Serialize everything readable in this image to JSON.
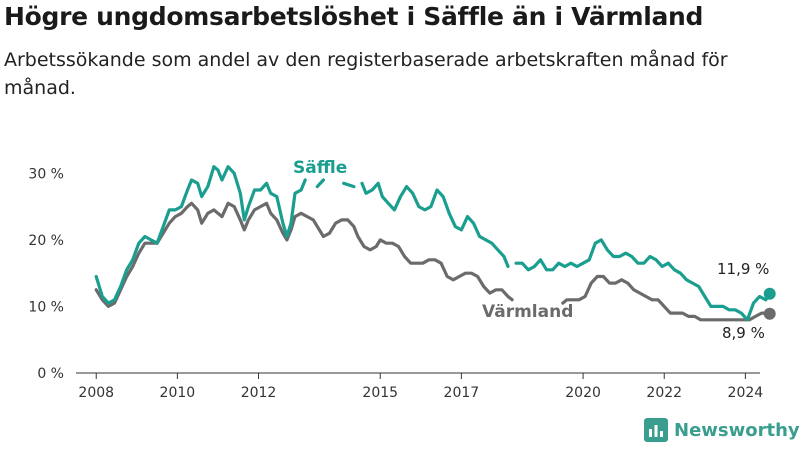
{
  "header": {
    "title": "Högre ungdomsarbetslöshet i Säffle än i Värmland",
    "subtitle": "Arbetssökande som andel av den registerbaserade arbetskraften månad för månad."
  },
  "brand": {
    "name": "Newsworthy",
    "logo_icon": "bar-chart-logo-icon",
    "color": "#3a9e8e"
  },
  "chart_data": {
    "type": "line",
    "title": "Högre ungdomsarbetslöshet i Säffle än i Värmland",
    "subtitle": "Arbetssökande som andel av den registerbaserade arbetskraften månad för månad.",
    "xlabel": "",
    "ylabel": "",
    "x_ticks": [
      "2008",
      "2010",
      "2012",
      "2015",
      "2017",
      "2020",
      "2022",
      "2024"
    ],
    "x_tick_values": [
      2008,
      2010,
      2012,
      2015,
      2017,
      2020,
      2022,
      2024
    ],
    "y_ticks": [
      "0 %",
      "10 %",
      "20 %",
      "30 %"
    ],
    "y_tick_values": [
      0,
      10,
      20,
      30
    ],
    "xlim": [
      2007.6,
      2025.1
    ],
    "ylim": [
      0,
      32
    ],
    "grid": false,
    "legend": "inline labels",
    "series": [
      {
        "name": "Säffle",
        "color": "#1a9e8f",
        "end_label": "11,9 %",
        "segments": [
          [
            [
              2008.0,
              14.5
            ],
            [
              2008.15,
              11.5
            ],
            [
              2008.3,
              10.5
            ],
            [
              2008.45,
              11.0
            ],
            [
              2008.6,
              13.0
            ],
            [
              2008.75,
              15.5
            ],
            [
              2008.9,
              17.0
            ],
            [
              2009.05,
              19.5
            ],
            [
              2009.2,
              20.5
            ],
            [
              2009.35,
              20.0
            ],
            [
              2009.5,
              19.5
            ],
            [
              2009.65,
              22.0
            ],
            [
              2009.8,
              24.5
            ],
            [
              2009.95,
              24.5
            ],
            [
              2010.1,
              25.0
            ],
            [
              2010.25,
              27.5
            ],
            [
              2010.35,
              29.0
            ],
            [
              2010.5,
              28.5
            ],
            [
              2010.6,
              26.5
            ],
            [
              2010.75,
              28.0
            ],
            [
              2010.9,
              31.0
            ],
            [
              2011.0,
              30.5
            ],
            [
              2011.1,
              29.0
            ],
            [
              2011.25,
              31.0
            ],
            [
              2011.4,
              30.0
            ],
            [
              2011.55,
              27.0
            ],
            [
              2011.65,
              23.0
            ],
            [
              2011.75,
              25.0
            ],
            [
              2011.9,
              27.5
            ],
            [
              2012.05,
              27.5
            ],
            [
              2012.2,
              28.5
            ],
            [
              2012.3,
              27.0
            ],
            [
              2012.45,
              26.5
            ],
            [
              2012.6,
              22.5
            ],
            [
              2012.7,
              20.5
            ],
            [
              2012.8,
              22.5
            ],
            [
              2012.9,
              27.0
            ],
            [
              2013.05,
              27.5
            ],
            [
              2013.15,
              29.0
            ]
          ],
          [
            [
              2013.45,
              28.0
            ],
            [
              2013.6,
              29.0
            ]
          ],
          [
            [
              2014.1,
              28.5
            ],
            [
              2014.35,
              28.0
            ]
          ],
          [
            [
              2014.55,
              28.5
            ],
            [
              2014.65,
              27.0
            ],
            [
              2014.8,
              27.5
            ],
            [
              2014.95,
              28.5
            ],
            [
              2015.05,
              26.5
            ],
            [
              2015.2,
              25.5
            ],
            [
              2015.35,
              24.5
            ],
            [
              2015.5,
              26.5
            ],
            [
              2015.65,
              28.0
            ],
            [
              2015.8,
              27.0
            ],
            [
              2015.95,
              25.0
            ],
            [
              2016.1,
              24.5
            ],
            [
              2016.25,
              25.0
            ],
            [
              2016.4,
              27.5
            ],
            [
              2016.55,
              26.5
            ],
            [
              2016.7,
              24.0
            ],
            [
              2016.85,
              22.0
            ],
            [
              2017.0,
              21.5
            ],
            [
              2017.15,
              23.5
            ],
            [
              2017.3,
              22.5
            ],
            [
              2017.45,
              20.5
            ],
            [
              2017.6,
              20.0
            ],
            [
              2017.75,
              19.5
            ],
            [
              2017.9,
              18.5
            ],
            [
              2018.05,
              17.5
            ],
            [
              2018.15,
              16.0
            ]
          ],
          [
            [
              2018.35,
              16.5
            ],
            [
              2018.5,
              16.5
            ],
            [
              2018.65,
              15.5
            ],
            [
              2018.8,
              16.0
            ],
            [
              2018.95,
              17.0
            ],
            [
              2019.1,
              15.5
            ],
            [
              2019.25,
              15.5
            ],
            [
              2019.4,
              16.5
            ],
            [
              2019.55,
              16.0
            ],
            [
              2019.7,
              16.5
            ],
            [
              2019.85,
              16.0
            ],
            [
              2020.0,
              16.5
            ],
            [
              2020.15,
              17.0
            ],
            [
              2020.3,
              19.5
            ],
            [
              2020.45,
              20.0
            ],
            [
              2020.6,
              18.5
            ],
            [
              2020.75,
              17.5
            ],
            [
              2020.9,
              17.5
            ],
            [
              2021.05,
              18.0
            ],
            [
              2021.2,
              17.5
            ],
            [
              2021.35,
              16.5
            ],
            [
              2021.5,
              16.5
            ],
            [
              2021.65,
              17.5
            ],
            [
              2021.8,
              17.0
            ],
            [
              2021.95,
              16.0
            ],
            [
              2022.1,
              16.5
            ],
            [
              2022.25,
              15.5
            ],
            [
              2022.4,
              15.0
            ],
            [
              2022.55,
              14.0
            ],
            [
              2022.7,
              13.5
            ],
            [
              2022.85,
              13.0
            ],
            [
              2023.0,
              11.5
            ],
            [
              2023.15,
              10.0
            ],
            [
              2023.3,
              10.0
            ],
            [
              2023.45,
              10.0
            ],
            [
              2023.6,
              9.5
            ],
            [
              2023.75,
              9.5
            ],
            [
              2023.9,
              9.0
            ],
            [
              2024.05,
              8.0
            ],
            [
              2024.2,
              10.5
            ],
            [
              2024.35,
              11.5
            ],
            [
              2024.5,
              11.0
            ],
            [
              2024.6,
              11.9
            ]
          ]
        ]
      },
      {
        "name": "Värmland",
        "color": "#6b6b6b",
        "end_label": "8,9 %",
        "segments": [
          [
            [
              2008.0,
              12.5
            ],
            [
              2008.15,
              11.0
            ],
            [
              2008.3,
              10.0
            ],
            [
              2008.45,
              10.5
            ],
            [
              2008.6,
              12.5
            ],
            [
              2008.75,
              14.5
            ],
            [
              2008.9,
              16.0
            ],
            [
              2009.05,
              18.0
            ],
            [
              2009.2,
              19.5
            ],
            [
              2009.35,
              19.5
            ],
            [
              2009.5,
              19.5
            ],
            [
              2009.65,
              21.0
            ],
            [
              2009.8,
              22.5
            ],
            [
              2009.95,
              23.5
            ],
            [
              2010.1,
              24.0
            ],
            [
              2010.25,
              25.0
            ],
            [
              2010.35,
              25.5
            ],
            [
              2010.5,
              24.5
            ],
            [
              2010.6,
              22.5
            ],
            [
              2010.75,
              24.0
            ],
            [
              2010.9,
              24.5
            ],
            [
              2011.0,
              24.0
            ],
            [
              2011.1,
              23.5
            ],
            [
              2011.25,
              25.5
            ],
            [
              2011.4,
              25.0
            ],
            [
              2011.55,
              23.0
            ],
            [
              2011.65,
              21.5
            ],
            [
              2011.75,
              23.0
            ],
            [
              2011.9,
              24.5
            ],
            [
              2012.05,
              25.0
            ],
            [
              2012.2,
              25.5
            ],
            [
              2012.3,
              24.0
            ],
            [
              2012.45,
              23.0
            ],
            [
              2012.6,
              21.0
            ],
            [
              2012.7,
              20.0
            ],
            [
              2012.8,
              21.5
            ],
            [
              2012.9,
              23.5
            ],
            [
              2013.05,
              24.0
            ],
            [
              2013.2,
              23.5
            ],
            [
              2013.35,
              23.0
            ],
            [
              2013.5,
              21.5
            ],
            [
              2013.6,
              20.5
            ],
            [
              2013.75,
              21.0
            ],
            [
              2013.9,
              22.5
            ],
            [
              2014.05,
              23.0
            ],
            [
              2014.2,
              23.0
            ],
            [
              2014.35,
              22.0
            ],
            [
              2014.45,
              20.5
            ],
            [
              2014.6,
              19.0
            ],
            [
              2014.75,
              18.5
            ],
            [
              2014.9,
              19.0
            ],
            [
              2015.0,
              20.0
            ],
            [
              2015.15,
              19.5
            ],
            [
              2015.3,
              19.5
            ],
            [
              2015.45,
              19.0
            ],
            [
              2015.6,
              17.5
            ],
            [
              2015.75,
              16.5
            ],
            [
              2015.9,
              16.5
            ],
            [
              2016.05,
              16.5
            ],
            [
              2016.2,
              17.0
            ],
            [
              2016.35,
              17.0
            ],
            [
              2016.5,
              16.5
            ],
            [
              2016.65,
              14.5
            ],
            [
              2016.8,
              14.0
            ],
            [
              2016.95,
              14.5
            ],
            [
              2017.1,
              15.0
            ],
            [
              2017.25,
              15.0
            ],
            [
              2017.4,
              14.5
            ],
            [
              2017.55,
              13.0
            ],
            [
              2017.7,
              12.0
            ],
            [
              2017.85,
              12.5
            ],
            [
              2018.0,
              12.5
            ],
            [
              2018.15,
              11.5
            ],
            [
              2018.25,
              11.0
            ]
          ],
          [
            [
              2019.5,
              10.5
            ],
            [
              2019.6,
              11.0
            ],
            [
              2019.75,
              11.0
            ],
            [
              2019.9,
              11.0
            ],
            [
              2020.05,
              11.5
            ],
            [
              2020.2,
              13.5
            ],
            [
              2020.35,
              14.5
            ],
            [
              2020.5,
              14.5
            ],
            [
              2020.65,
              13.5
            ],
            [
              2020.8,
              13.5
            ],
            [
              2020.95,
              14.0
            ],
            [
              2021.1,
              13.5
            ],
            [
              2021.25,
              12.5
            ],
            [
              2021.4,
              12.0
            ],
            [
              2021.55,
              11.5
            ],
            [
              2021.7,
              11.0
            ],
            [
              2021.85,
              11.0
            ],
            [
              2022.0,
              10.0
            ],
            [
              2022.15,
              9.0
            ],
            [
              2022.3,
              9.0
            ],
            [
              2022.45,
              9.0
            ],
            [
              2022.6,
              8.5
            ],
            [
              2022.75,
              8.5
            ],
            [
              2022.9,
              8.0
            ],
            [
              2023.05,
              8.0
            ],
            [
              2023.2,
              8.0
            ],
            [
              2023.35,
              8.0
            ],
            [
              2023.5,
              8.0
            ],
            [
              2023.65,
              8.0
            ],
            [
              2023.8,
              8.0
            ],
            [
              2023.95,
              8.0
            ],
            [
              2024.1,
              8.0
            ],
            [
              2024.25,
              8.5
            ],
            [
              2024.4,
              9.0
            ],
            [
              2024.5,
              9.0
            ],
            [
              2024.6,
              8.9
            ]
          ]
        ]
      }
    ]
  }
}
